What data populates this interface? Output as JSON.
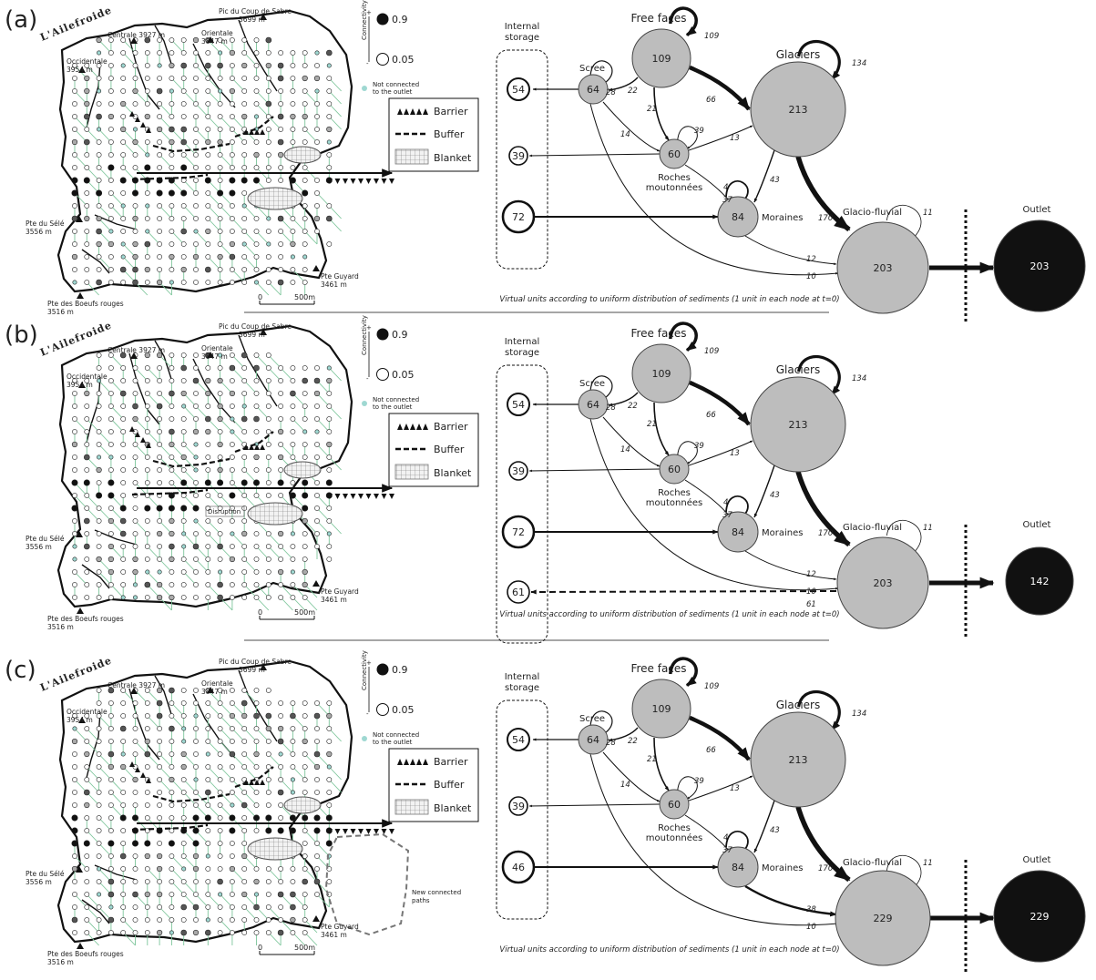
{
  "legend": {
    "connectivity_label": "Connectivity",
    "plus": "+",
    "minus": "-",
    "high_value": "0.9",
    "low_value": "0.05",
    "not_connected": [
      "Not connected",
      "to the outlet"
    ],
    "barrier": "Barrier",
    "buffer": "Buffer",
    "blanket": "Blanket"
  },
  "map_labels": {
    "valley": "L'Ailefroide",
    "occidentale": [
      "Occidentale",
      "3954 m"
    ],
    "centrale": "Centrale 3927 m",
    "orientale": [
      "Orientale",
      "3847 m"
    ],
    "pic": [
      "Pic du Coup de Sabre",
      "3699 m"
    ],
    "sele": [
      "Pte du Sélé",
      "3556 m"
    ],
    "boeufs": [
      "Pte des Boeufs rouges",
      "3516 m"
    ],
    "guyard": [
      "Pte Guyard",
      "3461 m"
    ],
    "scale_zero": "0",
    "scale_500": "500m",
    "disruption": "Disruption",
    "new_paths": [
      "New connected",
      "paths"
    ]
  },
  "flow_labels": {
    "internal_storage": [
      "Internal",
      "storage"
    ],
    "free_faces": "Free faces",
    "scree": "Scree",
    "glaciers": "Glaciers",
    "roches": [
      "Roches",
      "moutonnées"
    ],
    "moraines": "Moraines",
    "glacio_fluvial": "Glacio-fluvial",
    "outlet": "Outlet",
    "caption": "Virtual units according to uniform distribution of sediments (1 unit in each node at t=0)"
  },
  "panels": [
    {
      "letter": "(a)",
      "nodes": {
        "free_faces": "109",
        "scree": "64",
        "glaciers": "213",
        "roches": "60",
        "moraines": "84",
        "glacio_fluvial": "203",
        "outlet": "203"
      },
      "storage": [
        "54",
        "39",
        "72"
      ],
      "edges": {
        "ff_loop": "109",
        "scree_loop": "28",
        "ff_scree": "22",
        "ff_glaciers": "66",
        "ff_roches": "21",
        "roches_loop": "39",
        "scree_roches": "14",
        "roches_glaciers": "13",
        "roches_moraines": "4",
        "glaciers_moraines": "43",
        "glaciers_loop": "134",
        "moraines_loop": "37",
        "glaciers_gf": "170",
        "gf_loop": "11",
        "moraines_gf": "12",
        "scree_gf": "10"
      }
    },
    {
      "letter": "(b)",
      "nodes": {
        "free_faces": "109",
        "scree": "64",
        "glaciers": "213",
        "roches": "60",
        "moraines": "84",
        "glacio_fluvial": "203",
        "outlet": "142"
      },
      "storage": [
        "54",
        "39",
        "72",
        "61"
      ],
      "edges": {
        "ff_loop": "109",
        "scree_loop": "28",
        "ff_scree": "22",
        "ff_glaciers": "66",
        "ff_roches": "21",
        "roches_loop": "39",
        "scree_roches": "14",
        "roches_glaciers": "13",
        "roches_moraines": "4",
        "glaciers_moraines": "43",
        "glaciers_loop": "134",
        "moraines_loop": "37",
        "glaciers_gf": "170",
        "gf_loop": "11",
        "moraines_gf": "12",
        "scree_gf": "10",
        "gf_storage": "61"
      }
    },
    {
      "letter": "(c)",
      "nodes": {
        "free_faces": "109",
        "scree": "64",
        "glaciers": "213",
        "roches": "60",
        "moraines": "84",
        "glacio_fluvial": "229",
        "outlet": "229"
      },
      "storage": [
        "54",
        "39",
        "46"
      ],
      "edges": {
        "ff_loop": "109",
        "scree_loop": "28",
        "ff_scree": "22",
        "ff_glaciers": "66",
        "ff_roches": "21",
        "roches_loop": "39",
        "scree_roches": "14",
        "roches_glaciers": "13",
        "roches_moraines": "4",
        "glaciers_moraines": "43",
        "glaciers_loop": "134",
        "moraines_loop": "37",
        "glaciers_gf": "170",
        "gf_loop": "11",
        "moraines_gf": "38",
        "scree_gf": "10"
      }
    }
  ]
}
